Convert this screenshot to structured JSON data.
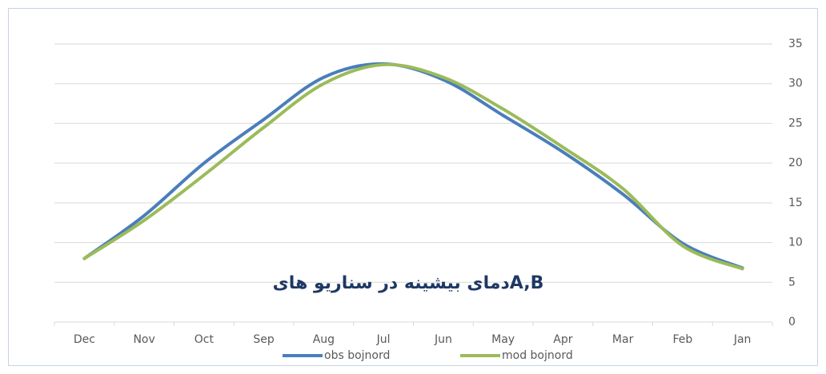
{
  "chart_data": {
    "type": "line",
    "title": "دمای بیشینه در سناریو هایA,B",
    "categories": [
      "Dec",
      "Nov",
      "Oct",
      "Sep",
      "Aug",
      "Jul",
      "Jun",
      "May",
      "Apr",
      "Mar",
      "Feb",
      "Jan"
    ],
    "series": [
      {
        "name": "obs bojnord",
        "color": "#4a7ebb",
        "values": [
          8,
          13.4,
          20,
          25.5,
          30.8,
          32.5,
          30.5,
          26,
          21.4,
          16.1,
          9.9,
          6.8
        ]
      },
      {
        "name": "mod bojnord",
        "color": "#9bbb59",
        "values": [
          8,
          12.8,
          18.5,
          24.5,
          30,
          32.4,
          30.8,
          26.8,
          22,
          16.8,
          9.6,
          6.7
        ]
      }
    ],
    "ylim": [
      0,
      35
    ],
    "yticks": [
      0,
      5,
      10,
      15,
      20,
      25,
      30,
      35
    ],
    "grid": true,
    "legend": "bottom"
  }
}
